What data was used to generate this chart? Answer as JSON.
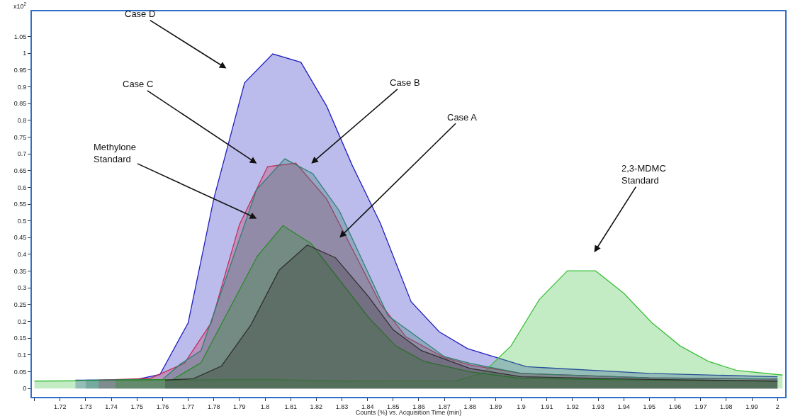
{
  "chart_data": {
    "type": "area",
    "xlabel": "Counts (%) vs. Acquisition Time (min)",
    "ylabel": "x10$^{2}$",
    "xlim": [
      1.709,
      2.003
    ],
    "ylim": [
      -0.025,
      1.125
    ],
    "xticks": [
      {
        "value": 1.71,
        "label": null
      },
      1.72,
      1.73,
      1.74,
      1.75,
      1.76,
      1.77,
      1.78,
      1.79,
      1.8,
      1.81,
      1.82,
      1.83,
      1.84,
      1.85,
      1.86,
      1.87,
      1.88,
      1.89,
      1.9,
      1.91,
      1.92,
      1.93,
      1.94,
      1.95,
      1.96,
      1.97,
      1.98,
      1.99,
      2
    ],
    "yticks": [
      0,
      0.05,
      0.1,
      0.15,
      0.2,
      0.25,
      0.3,
      0.35,
      0.4,
      0.45,
      0.5,
      0.55,
      0.6,
      0.65,
      0.7,
      0.75,
      0.8,
      0.85,
      0.9,
      0.95,
      1,
      1.05
    ],
    "marker": "none",
    "line_style": "solid",
    "series": [
      {
        "color": "#2020c0",
        "x": [
          1.726,
          1.7485,
          1.759,
          1.77,
          1.78,
          1.792,
          1.803,
          1.814,
          1.824,
          1.834,
          1.845,
          1.857,
          1.868,
          1.879,
          1.902,
          1.95,
          2.0
        ],
        "values": [
          0.025,
          0.025,
          0.042,
          0.196,
          0.566,
          0.912,
          0.998,
          0.973,
          0.843,
          0.666,
          0.493,
          0.259,
          0.169,
          0.119,
          0.065,
          0.045,
          0.035
        ]
      },
      {
        "color": "#3cc03c",
        "x": [
          1.71,
          1.8,
          1.83,
          1.8745,
          1.885,
          1.896,
          1.907,
          1.918,
          1.929,
          1.94,
          1.951,
          1.962,
          1.973,
          1.984,
          2.002
        ],
        "values": [
          0.022,
          0.027,
          0.022,
          0.023,
          0.046,
          0.127,
          0.265,
          0.351,
          0.351,
          0.284,
          0.196,
          0.127,
          0.081,
          0.054,
          0.04
        ]
      },
      {
        "color": "#c0305a",
        "x": [
          1.735,
          1.755,
          1.7685,
          1.779,
          1.79,
          1.801,
          1.812,
          1.824,
          1.845,
          1.855,
          1.87,
          1.88,
          1.9,
          1.95,
          2.0
        ],
        "values": [
          0.025,
          0.03,
          0.075,
          0.196,
          0.489,
          0.662,
          0.672,
          0.566,
          0.253,
          0.154,
          0.092,
          0.07,
          0.045,
          0.032,
          0.028
        ]
      },
      {
        "color": "#2f7f6f",
        "x": [
          1.73,
          1.76,
          1.767,
          1.775,
          1.7967,
          1.8077,
          1.8186,
          1.829,
          1.848,
          1.87,
          1.88,
          1.9,
          1.95,
          2.0
        ],
        "values": [
          0.025,
          0.027,
          0.073,
          0.113,
          0.593,
          0.685,
          0.641,
          0.53,
          0.217,
          0.095,
          0.075,
          0.045,
          0.032,
          0.028
        ]
      },
      {
        "color": "#2a8a2a",
        "x": [
          1.7416,
          1.764,
          1.775,
          1.797,
          1.807,
          1.818,
          1.8405,
          1.851,
          1.862,
          1.88,
          1.9,
          1.95,
          2.0
        ],
        "values": [
          0.025,
          0.027,
          0.077,
          0.395,
          0.486,
          0.432,
          0.211,
          0.127,
          0.081,
          0.05,
          0.03,
          0.025,
          0.022
        ]
      },
      {
        "color": "#303030",
        "x": [
          1.761,
          1.772,
          1.783,
          1.7945,
          1.8055,
          1.8165,
          1.8275,
          1.8405,
          1.85,
          1.861,
          1.88,
          1.9,
          1.95,
          2.0
        ],
        "values": [
          0.025,
          0.029,
          0.067,
          0.19,
          0.353,
          0.428,
          0.39,
          0.273,
          0.175,
          0.113,
          0.06,
          0.035,
          0.027,
          0.022
        ]
      }
    ],
    "annotations": [
      "Case D",
      "Case C",
      "Case B",
      "Case A",
      "Methylone\nStandard",
      "2,3-MDMC\nStandard"
    ]
  }
}
